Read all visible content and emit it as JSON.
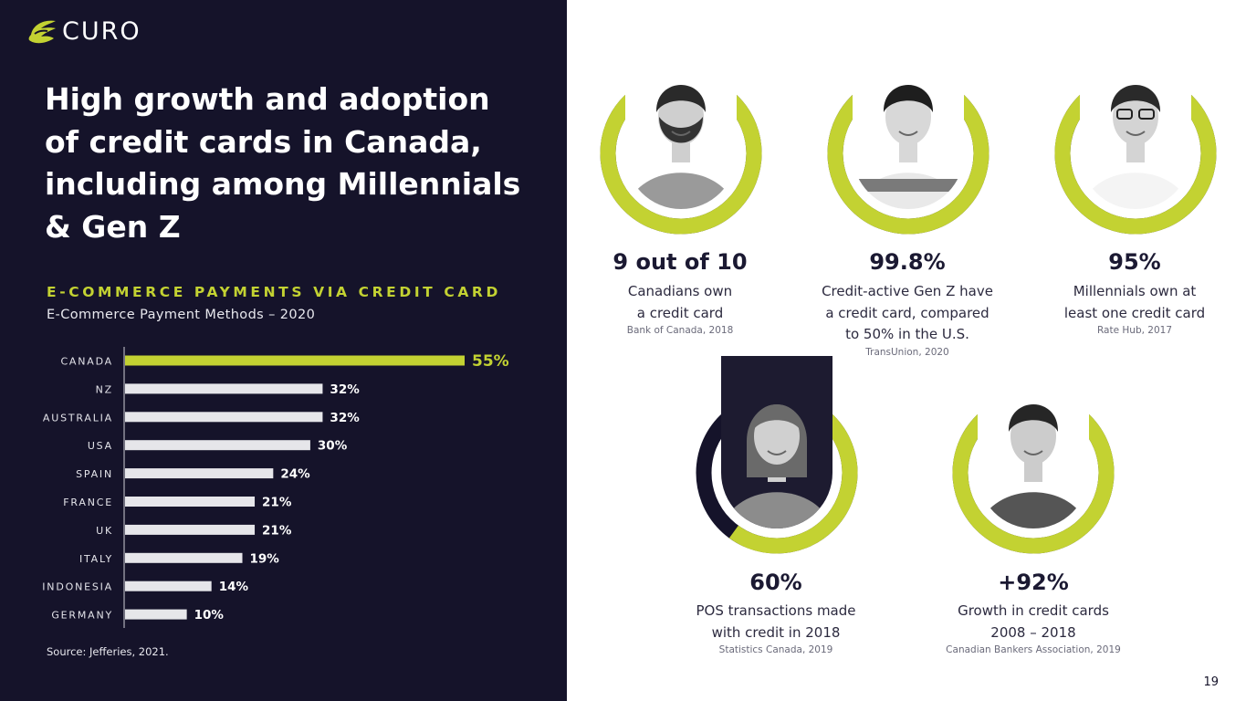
{
  "brand": {
    "name": "CURO",
    "accent": "#c3d232",
    "dark": "#15132a"
  },
  "headline": {
    "lines": [
      "High growth and adoption",
      "of credit cards in Canada,",
      "including among Millennials",
      "& Gen Z"
    ]
  },
  "section": {
    "title": "E-COMMERCE PAYMENTS VIA CREDIT CARD",
    "subtitle": "E-Commerce Payment Methods – 2020"
  },
  "chart_data": {
    "type": "bar",
    "orientation": "horizontal",
    "title": "E-Commerce Payment Methods – 2020",
    "categories": [
      "CANADA",
      "NZ",
      "AUSTRALIA",
      "USA",
      "SPAIN",
      "FRANCE",
      "UK",
      "ITALY",
      "INDONESIA",
      "GERMANY"
    ],
    "values": [
      55,
      32,
      32,
      30,
      24,
      21,
      21,
      19,
      14,
      10
    ],
    "labels": [
      "55%",
      "32%",
      "32%",
      "30%",
      "24%",
      "21%",
      "21%",
      "19%",
      "14%",
      "10%"
    ],
    "highlight_index": 0,
    "unit": "%",
    "xlim": [
      0,
      55
    ]
  },
  "source": "Source: Jefferies, 2021.",
  "stats": [
    {
      "value": "9 out of 10",
      "desc": [
        "Canadians own",
        "a credit card"
      ],
      "source": "Bank of Canada, 2018",
      "icon": "bearded-man-with-credit-card-photo",
      "ring_pct": 90
    },
    {
      "value": "99.8%",
      "desc": [
        "Credit-active Gen Z have",
        "a credit card, compared",
        "to 50% in the U.S."
      ],
      "source": "TransUnion, 2020",
      "icon": "laughing-woman-photo",
      "ring_pct": 99.8
    },
    {
      "value": "95%",
      "desc": [
        "Millennials own at",
        "least one credit card"
      ],
      "source": "Rate Hub, 2017",
      "icon": "smiling-man-with-glasses-photo",
      "ring_pct": 95
    },
    {
      "value": "60%",
      "desc": [
        "POS transactions made",
        "with credit in 2018"
      ],
      "source": "Statistics Canada, 2019",
      "icon": "woman-holding-card-photo",
      "ring_pct": 60
    },
    {
      "value": "+92%",
      "desc": [
        "Growth in credit cards",
        "2008 – 2018"
      ],
      "source": "Canadian Bankers Association, 2019",
      "icon": "young-man-holding-card-photo",
      "ring_pct": 92
    }
  ],
  "page_number": "19"
}
